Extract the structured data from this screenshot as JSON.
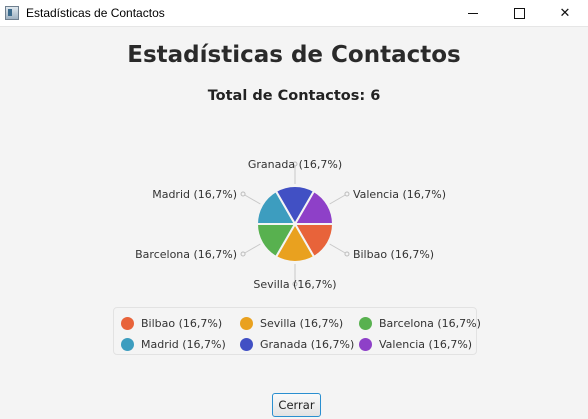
{
  "window": {
    "title": "Estadísticas de Contactos",
    "controls": {
      "minimize": "—",
      "close": "✕"
    }
  },
  "main": {
    "heading": "Estadísticas de Contactos",
    "total_text": "Total de Contactos: 6"
  },
  "chart_data": {
    "type": "pie",
    "title": "",
    "slices": [
      {
        "label": "Bilbao (16,7%)",
        "value": 16.7,
        "color": "#e8633a"
      },
      {
        "label": "Sevilla (16,7%)",
        "value": 16.7,
        "color": "#e9a11f"
      },
      {
        "label": "Barcelona (16,7%)",
        "value": 16.7,
        "color": "#58b14f"
      },
      {
        "label": "Madrid (16,7%)",
        "value": 16.7,
        "color": "#3d9dbf"
      },
      {
        "label": "Granada (16,7%)",
        "value": 16.7,
        "color": "#4150c4"
      },
      {
        "label": "Valencia (16,7%)",
        "value": 16.7,
        "color": "#8e40c8"
      }
    ],
    "legend_position": "bottom"
  },
  "buttons": {
    "close_label": "Cerrar"
  }
}
